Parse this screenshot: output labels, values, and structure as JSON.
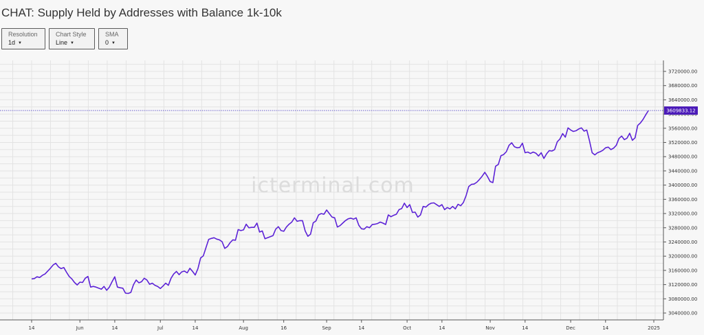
{
  "header": {
    "title": "CHAT: Supply Held by Addresses with Balance 1k-10k"
  },
  "controls": [
    {
      "label": "Resolution",
      "value": "1d"
    },
    {
      "label": "Chart Style",
      "value": "Line"
    },
    {
      "label": "SMA",
      "value": "0"
    }
  ],
  "watermark": "icterminal.com",
  "colors": {
    "line": "#5b21d6",
    "price_marker": "#4b1bb8",
    "current_line": "#3a2cc0",
    "grid": "#e3e3e3"
  },
  "chart_data": {
    "type": "line",
    "title": "CHAT: Supply Held by Addresses with Balance 1k-10k",
    "xlabel": "",
    "ylabel": "",
    "grid": true,
    "x_range": [
      "2024-05-14",
      "2025-01-06"
    ],
    "ylim": [
      3020000,
      3740000
    ],
    "y_ticks": [
      3040000,
      3080000,
      3120000,
      3160000,
      3200000,
      3240000,
      3280000,
      3320000,
      3360000,
      3400000,
      3440000,
      3480000,
      3520000,
      3560000,
      3600000,
      3640000,
      3680000,
      3720000
    ],
    "y_tick_labels": [
      "3040000.00",
      "3080000.00",
      "3120000.00",
      "3160000.00",
      "3200000.00",
      "3240000.00",
      "3280000.00",
      "3320000.00",
      "3360000.00",
      "3400000.00",
      "3440000.00",
      "3480000.00",
      "3520000.00",
      "3560000.00",
      "3600000.00",
      "3640000.00",
      "3680000.00",
      "3720000.00"
    ],
    "x_ticks": [
      {
        "date": "2024-05-14",
        "label": "14"
      },
      {
        "date": "2024-06-01",
        "label": "Jun"
      },
      {
        "date": "2024-06-14",
        "label": "14"
      },
      {
        "date": "2024-07-01",
        "label": "Jul"
      },
      {
        "date": "2024-07-14",
        "label": "14"
      },
      {
        "date": "2024-08-01",
        "label": "Aug"
      },
      {
        "date": "2024-08-16",
        "label": "16"
      },
      {
        "date": "2024-09-01",
        "label": "Sep"
      },
      {
        "date": "2024-09-14",
        "label": "14"
      },
      {
        "date": "2024-10-01",
        "label": "Oct"
      },
      {
        "date": "2024-10-14",
        "label": "14"
      },
      {
        "date": "2024-11-01",
        "label": "Nov"
      },
      {
        "date": "2024-11-14",
        "label": "14"
      },
      {
        "date": "2024-12-01",
        "label": "Dec"
      },
      {
        "date": "2024-12-14",
        "label": "14"
      },
      {
        "date": "2025-01-01",
        "label": "2025"
      }
    ],
    "last_value": 3609833.12,
    "last_value_label": "3609833.12",
    "series": [
      {
        "values": [
          [
            "2024-05-14",
            3136000
          ],
          [
            "2024-05-15",
            3137000
          ],
          [
            "2024-05-16",
            3142000
          ],
          [
            "2024-05-17",
            3140000
          ],
          [
            "2024-05-18",
            3146000
          ],
          [
            "2024-05-19",
            3150000
          ],
          [
            "2024-05-20",
            3158000
          ],
          [
            "2024-05-21",
            3166000
          ],
          [
            "2024-05-22",
            3175000
          ],
          [
            "2024-05-23",
            3180000
          ],
          [
            "2024-05-24",
            3170000
          ],
          [
            "2024-05-25",
            3165000
          ],
          [
            "2024-05-26",
            3168000
          ],
          [
            "2024-05-27",
            3155000
          ],
          [
            "2024-05-28",
            3143000
          ],
          [
            "2024-05-29",
            3136000
          ],
          [
            "2024-05-30",
            3126000
          ],
          [
            "2024-05-31",
            3119000
          ],
          [
            "2024-06-01",
            3127000
          ],
          [
            "2024-06-02",
            3126000
          ],
          [
            "2024-06-03",
            3138000
          ],
          [
            "2024-06-04",
            3143000
          ],
          [
            "2024-06-05",
            3113000
          ],
          [
            "2024-06-06",
            3115000
          ],
          [
            "2024-06-07",
            3113000
          ],
          [
            "2024-06-08",
            3110000
          ],
          [
            "2024-06-09",
            3107000
          ],
          [
            "2024-06-10",
            3115000
          ],
          [
            "2024-06-11",
            3104000
          ],
          [
            "2024-06-12",
            3113000
          ],
          [
            "2024-06-13",
            3128000
          ],
          [
            "2024-06-14",
            3142000
          ],
          [
            "2024-06-15",
            3113000
          ],
          [
            "2024-06-16",
            3111000
          ],
          [
            "2024-06-17",
            3110000
          ],
          [
            "2024-06-18",
            3096000
          ],
          [
            "2024-06-19",
            3095000
          ],
          [
            "2024-06-20",
            3098000
          ],
          [
            "2024-06-21",
            3120000
          ],
          [
            "2024-06-22",
            3133000
          ],
          [
            "2024-06-23",
            3125000
          ],
          [
            "2024-06-24",
            3128000
          ],
          [
            "2024-06-25",
            3138000
          ],
          [
            "2024-06-26",
            3133000
          ],
          [
            "2024-06-27",
            3121000
          ],
          [
            "2024-06-28",
            3124000
          ],
          [
            "2024-06-29",
            3118000
          ],
          [
            "2024-06-30",
            3115000
          ],
          [
            "2024-07-01",
            3109000
          ],
          [
            "2024-07-02",
            3116000
          ],
          [
            "2024-07-03",
            3124000
          ],
          [
            "2024-07-04",
            3118000
          ],
          [
            "2024-07-05",
            3138000
          ],
          [
            "2024-07-06",
            3150000
          ],
          [
            "2024-07-07",
            3157000
          ],
          [
            "2024-07-08",
            3148000
          ],
          [
            "2024-07-09",
            3156000
          ],
          [
            "2024-07-10",
            3158000
          ],
          [
            "2024-07-11",
            3153000
          ],
          [
            "2024-07-12",
            3166000
          ],
          [
            "2024-07-13",
            3157000
          ],
          [
            "2024-07-14",
            3147000
          ],
          [
            "2024-07-15",
            3165000
          ],
          [
            "2024-07-16",
            3195000
          ],
          [
            "2024-07-17",
            3201000
          ],
          [
            "2024-07-18",
            3224000
          ],
          [
            "2024-07-19",
            3247000
          ],
          [
            "2024-07-20",
            3250000
          ],
          [
            "2024-07-21",
            3252000
          ],
          [
            "2024-07-22",
            3248000
          ],
          [
            "2024-07-23",
            3246000
          ],
          [
            "2024-07-24",
            3241000
          ],
          [
            "2024-07-25",
            3222000
          ],
          [
            "2024-07-26",
            3227000
          ],
          [
            "2024-07-27",
            3238000
          ],
          [
            "2024-07-28",
            3246000
          ],
          [
            "2024-07-29",
            3245000
          ],
          [
            "2024-07-30",
            3275000
          ],
          [
            "2024-07-31",
            3272000
          ],
          [
            "2024-08-01",
            3274000
          ],
          [
            "2024-08-02",
            3290000
          ],
          [
            "2024-08-03",
            3280000
          ],
          [
            "2024-08-04",
            3281000
          ],
          [
            "2024-08-05",
            3281000
          ],
          [
            "2024-08-06",
            3293000
          ],
          [
            "2024-08-07",
            3268000
          ],
          [
            "2024-08-08",
            3271000
          ],
          [
            "2024-08-09",
            3249000
          ],
          [
            "2024-08-10",
            3252000
          ],
          [
            "2024-08-11",
            3255000
          ],
          [
            "2024-08-12",
            3258000
          ],
          [
            "2024-08-13",
            3276000
          ],
          [
            "2024-08-14",
            3283000
          ],
          [
            "2024-08-15",
            3272000
          ],
          [
            "2024-08-16",
            3270000
          ],
          [
            "2024-08-17",
            3282000
          ],
          [
            "2024-08-18",
            3290000
          ],
          [
            "2024-08-19",
            3296000
          ],
          [
            "2024-08-20",
            3308000
          ],
          [
            "2024-08-21",
            3298000
          ],
          [
            "2024-08-22",
            3300000
          ],
          [
            "2024-08-23",
            3300000
          ],
          [
            "2024-08-24",
            3271000
          ],
          [
            "2024-08-25",
            3256000
          ],
          [
            "2024-08-26",
            3262000
          ],
          [
            "2024-08-27",
            3294000
          ],
          [
            "2024-08-28",
            3299000
          ],
          [
            "2024-08-29",
            3316000
          ],
          [
            "2024-08-30",
            3320000
          ],
          [
            "2024-08-31",
            3318000
          ],
          [
            "2024-09-01",
            3330000
          ],
          [
            "2024-09-02",
            3320000
          ],
          [
            "2024-09-03",
            3310000
          ],
          [
            "2024-09-04",
            3308000
          ],
          [
            "2024-09-05",
            3282000
          ],
          [
            "2024-09-06",
            3286000
          ],
          [
            "2024-09-07",
            3293000
          ],
          [
            "2024-09-08",
            3300000
          ],
          [
            "2024-09-09",
            3305000
          ],
          [
            "2024-09-10",
            3307000
          ],
          [
            "2024-09-11",
            3304000
          ],
          [
            "2024-09-12",
            3308000
          ],
          [
            "2024-09-13",
            3287000
          ],
          [
            "2024-09-14",
            3277000
          ],
          [
            "2024-09-15",
            3276000
          ],
          [
            "2024-09-16",
            3283000
          ],
          [
            "2024-09-17",
            3280000
          ],
          [
            "2024-09-18",
            3289000
          ],
          [
            "2024-09-19",
            3290000
          ],
          [
            "2024-09-20",
            3292000
          ],
          [
            "2024-09-21",
            3296000
          ],
          [
            "2024-09-22",
            3293000
          ],
          [
            "2024-09-23",
            3289000
          ],
          [
            "2024-09-24",
            3316000
          ],
          [
            "2024-09-25",
            3311000
          ],
          [
            "2024-09-26",
            3315000
          ],
          [
            "2024-09-27",
            3318000
          ],
          [
            "2024-09-28",
            3331000
          ],
          [
            "2024-09-29",
            3334000
          ],
          [
            "2024-09-30",
            3349000
          ],
          [
            "2024-10-01",
            3337000
          ],
          [
            "2024-10-02",
            3345000
          ],
          [
            "2024-10-03",
            3323000
          ],
          [
            "2024-10-04",
            3324000
          ],
          [
            "2024-10-05",
            3310000
          ],
          [
            "2024-10-06",
            3316000
          ],
          [
            "2024-10-07",
            3340000
          ],
          [
            "2024-10-08",
            3338000
          ],
          [
            "2024-10-09",
            3345000
          ],
          [
            "2024-10-10",
            3349000
          ],
          [
            "2024-10-11",
            3350000
          ],
          [
            "2024-10-12",
            3345000
          ],
          [
            "2024-10-13",
            3340000
          ],
          [
            "2024-10-14",
            3345000
          ],
          [
            "2024-10-15",
            3331000
          ],
          [
            "2024-10-16",
            3337000
          ],
          [
            "2024-10-17",
            3333000
          ],
          [
            "2024-10-18",
            3340000
          ],
          [
            "2024-10-19",
            3333000
          ],
          [
            "2024-10-20",
            3346000
          ],
          [
            "2024-10-21",
            3342000
          ],
          [
            "2024-10-22",
            3351000
          ],
          [
            "2024-10-23",
            3370000
          ],
          [
            "2024-10-24",
            3396000
          ],
          [
            "2024-10-25",
            3402000
          ],
          [
            "2024-10-26",
            3403000
          ],
          [
            "2024-10-27",
            3408000
          ],
          [
            "2024-10-28",
            3416000
          ],
          [
            "2024-10-29",
            3425000
          ],
          [
            "2024-10-30",
            3436000
          ],
          [
            "2024-10-31",
            3424000
          ],
          [
            "2024-11-01",
            3410000
          ],
          [
            "2024-11-02",
            3407000
          ],
          [
            "2024-11-03",
            3453000
          ],
          [
            "2024-11-04",
            3458000
          ],
          [
            "2024-11-05",
            3483000
          ],
          [
            "2024-11-06",
            3486000
          ],
          [
            "2024-11-07",
            3494000
          ],
          [
            "2024-11-08",
            3512000
          ],
          [
            "2024-11-09",
            3519000
          ],
          [
            "2024-11-10",
            3508000
          ],
          [
            "2024-11-11",
            3505000
          ],
          [
            "2024-11-12",
            3506000
          ],
          [
            "2024-11-13",
            3518000
          ],
          [
            "2024-11-14",
            3491000
          ],
          [
            "2024-11-15",
            3493000
          ],
          [
            "2024-11-16",
            3489000
          ],
          [
            "2024-11-17",
            3493000
          ],
          [
            "2024-11-18",
            3490000
          ],
          [
            "2024-11-19",
            3482000
          ],
          [
            "2024-11-20",
            3491000
          ],
          [
            "2024-11-21",
            3475000
          ],
          [
            "2024-11-22",
            3488000
          ],
          [
            "2024-11-23",
            3497000
          ],
          [
            "2024-11-24",
            3496000
          ],
          [
            "2024-11-25",
            3500000
          ],
          [
            "2024-11-26",
            3522000
          ],
          [
            "2024-11-27",
            3530000
          ],
          [
            "2024-11-28",
            3545000
          ],
          [
            "2024-11-29",
            3535000
          ],
          [
            "2024-11-30",
            3561000
          ],
          [
            "2024-12-01",
            3555000
          ],
          [
            "2024-12-02",
            3551000
          ],
          [
            "2024-12-03",
            3553000
          ],
          [
            "2024-12-04",
            3558000
          ],
          [
            "2024-12-05",
            3561000
          ],
          [
            "2024-12-06",
            3552000
          ],
          [
            "2024-12-07",
            3555000
          ],
          [
            "2024-12-08",
            3525000
          ],
          [
            "2024-12-09",
            3491000
          ],
          [
            "2024-12-10",
            3485000
          ],
          [
            "2024-12-11",
            3491000
          ],
          [
            "2024-12-12",
            3494000
          ],
          [
            "2024-12-13",
            3498000
          ],
          [
            "2024-12-14",
            3505000
          ],
          [
            "2024-12-15",
            3507000
          ],
          [
            "2024-12-16",
            3500000
          ],
          [
            "2024-12-17",
            3504000
          ],
          [
            "2024-12-18",
            3512000
          ],
          [
            "2024-12-19",
            3531000
          ],
          [
            "2024-12-20",
            3538000
          ],
          [
            "2024-12-21",
            3528000
          ],
          [
            "2024-12-22",
            3532000
          ],
          [
            "2024-12-23",
            3546000
          ],
          [
            "2024-12-24",
            3526000
          ],
          [
            "2024-12-25",
            3533000
          ],
          [
            "2024-12-26",
            3568000
          ],
          [
            "2024-12-27",
            3575000
          ],
          [
            "2024-12-28",
            3585000
          ],
          [
            "2024-12-29",
            3598000
          ],
          [
            "2024-12-30",
            3609833.12
          ]
        ]
      }
    ]
  }
}
